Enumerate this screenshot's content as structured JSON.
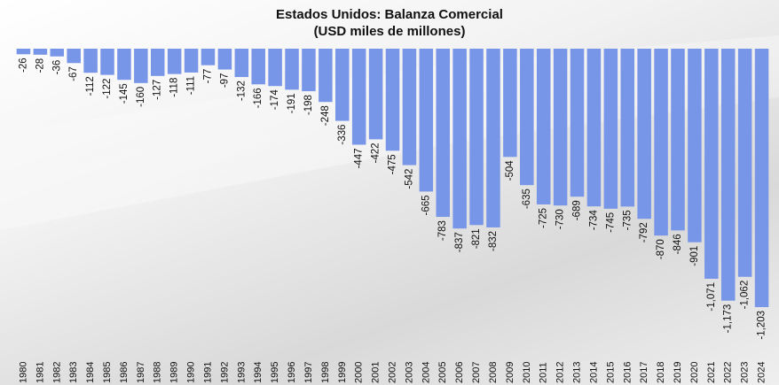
{
  "chart_data": {
    "type": "bar",
    "title": "Estados Unidos: Balanza Comercial",
    "subtitle": "(USD miles de millones)",
    "xlabel": "",
    "ylabel": "",
    "ylim": [
      -1203,
      0
    ],
    "grid": false,
    "legend": "none",
    "bar_color": "#7896e8",
    "categories": [
      "1980",
      "1981",
      "1982",
      "1983",
      "1984",
      "1985",
      "1986",
      "1987",
      "1988",
      "1989",
      "1990",
      "1991",
      "1992",
      "1993",
      "1994",
      "1995",
      "1996",
      "1997",
      "1998",
      "1999",
      "2000",
      "2001",
      "2002",
      "2003",
      "2004",
      "2005",
      "2006",
      "2007",
      "2008",
      "2009",
      "2010",
      "2011",
      "2012",
      "2013",
      "2014",
      "2015",
      "2016",
      "2017",
      "2018",
      "2019",
      "2020",
      "2021",
      "2022",
      "2023",
      "2024"
    ],
    "values": [
      -26,
      -28,
      -36,
      -67,
      -112,
      -122,
      -145,
      -160,
      -127,
      -118,
      -111,
      -77,
      -97,
      -132,
      -166,
      -174,
      -191,
      -198,
      -248,
      -336,
      -447,
      -422,
      -475,
      -542,
      -665,
      -783,
      -837,
      -821,
      -832,
      -504,
      -635,
      -725,
      -730,
      -689,
      -734,
      -745,
      -735,
      -792,
      -870,
      -846,
      -901,
      -1071,
      -1173,
      -1062,
      -1203
    ],
    "value_labels": [
      "-26",
      "-28",
      "-36",
      "-67",
      "-112",
      "-122",
      "-145",
      "-160",
      "-127",
      "-118",
      "-111",
      "-77",
      "-97",
      "-132",
      "-166",
      "-174",
      "-191",
      "-198",
      "-248",
      "-336",
      "-447",
      "-422",
      "-475",
      "-542",
      "-665",
      "-783",
      "-837",
      "-821",
      "-832",
      "-504",
      "-635",
      "-725",
      "-730",
      "-689",
      "-734",
      "-745",
      "-735",
      "-792",
      "-870",
      "-846",
      "-901",
      "-1,071",
      "-1,173",
      "-1,062",
      "-1,203"
    ]
  }
}
